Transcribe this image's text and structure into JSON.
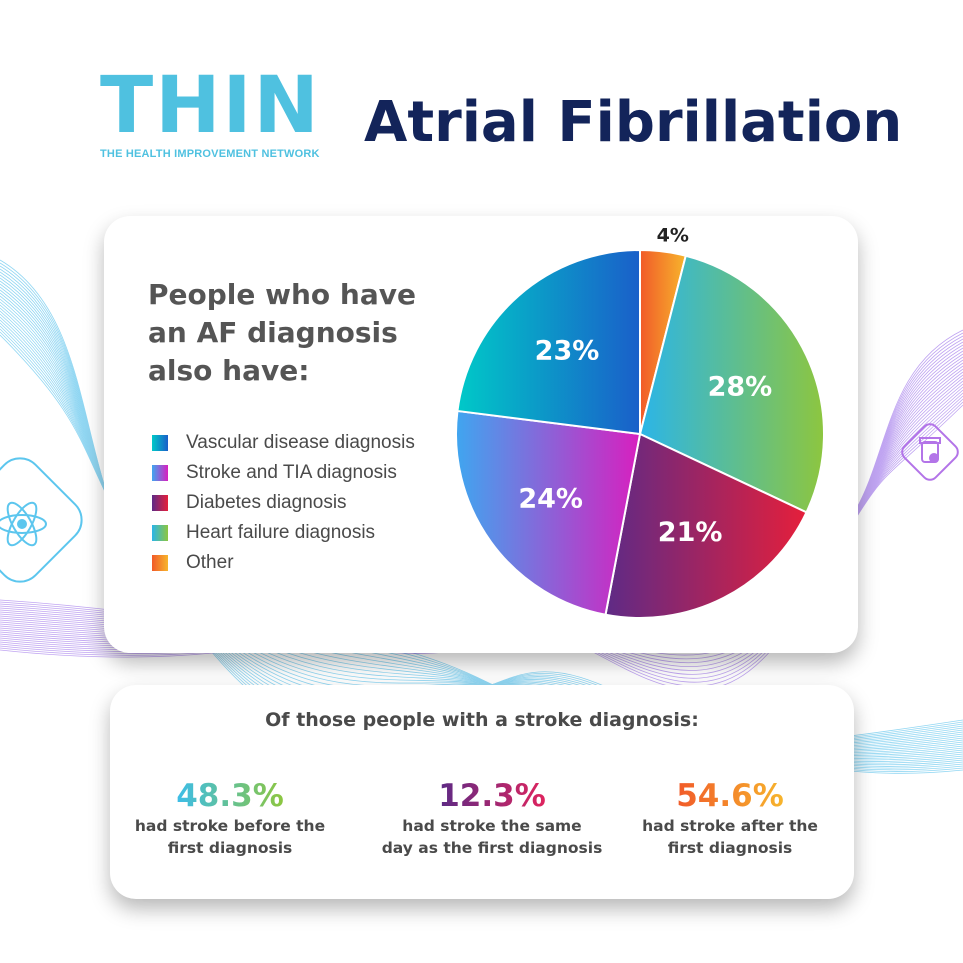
{
  "header": {
    "logo_text": "THIN",
    "logo_subtitle": "THE HEALTH IMPROVEMENT NETWORK",
    "title": "Atrial Fibrillation"
  },
  "chart": {
    "heading": "People who have an AF diagnosis also have:"
  },
  "chart_data": {
    "type": "pie",
    "categories": [
      "Vascular disease diagnosis",
      "Stroke and TIA diagnosis",
      "Diabetes diagnosis",
      "Heart failure diagnosis",
      "Other"
    ],
    "values": [
      23,
      24,
      21,
      28,
      4
    ],
    "value_labels": [
      "23%",
      "24%",
      "21%",
      "28%",
      "4%"
    ],
    "colors": [
      [
        "#00c9c8",
        "#1a5fc9"
      ],
      [
        "#3fa6f0",
        "#d81fbf"
      ],
      [
        "#5e2a86",
        "#e51f3b"
      ],
      [
        "#2bb5e8",
        "#8dc63f"
      ],
      [
        "#f15a29",
        "#f7b52c"
      ]
    ],
    "legend_position": "left"
  },
  "stats": {
    "heading": "Of those people with a stroke diagnosis:",
    "items": [
      {
        "value": "48.3%",
        "desc_line1": "had stroke before the",
        "desc_line2": "first diagnosis"
      },
      {
        "value": "12.3%",
        "desc_line1": "had stroke the same",
        "desc_line2": "day as the first diagnosis"
      },
      {
        "value": "54.6%",
        "desc_line1": "had stroke after the",
        "desc_line2": "first diagnosis"
      }
    ]
  }
}
